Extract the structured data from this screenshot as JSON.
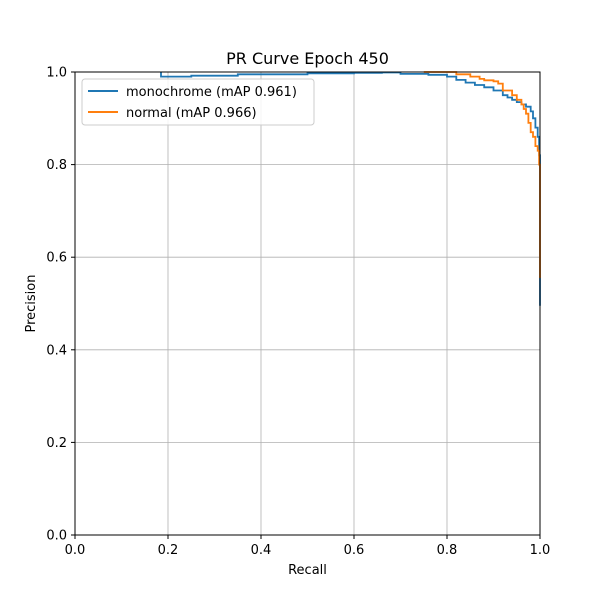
{
  "chart_data": {
    "type": "line",
    "title": "PR Curve Epoch 450",
    "xlabel": "Recall",
    "ylabel": "Precision",
    "xlim": [
      0,
      1
    ],
    "ylim": [
      0,
      1
    ],
    "xticks": [
      "0.0",
      "0.2",
      "0.4",
      "0.6",
      "0.8",
      "1.0"
    ],
    "yticks": [
      "0.0",
      "0.2",
      "0.4",
      "0.6",
      "0.8",
      "1.0"
    ],
    "grid": true,
    "legend_position": "top-left",
    "series": [
      {
        "name": "monochrome (mAP 0.961)",
        "color": "#1f77b4",
        "x": [
          0.185,
          0.185,
          0.25,
          0.35,
          0.5,
          0.6,
          0.66,
          0.7,
          0.76,
          0.8,
          0.82,
          0.84,
          0.86,
          0.88,
          0.9,
          0.92,
          0.93,
          0.94,
          0.95,
          0.96,
          0.97,
          0.98,
          0.985,
          0.99,
          0.995,
          0.998,
          1.0,
          1.0,
          1.0
        ],
        "y": [
          1.0,
          0.99,
          0.992,
          0.995,
          0.997,
          0.998,
          0.999,
          0.996,
          0.994,
          0.99,
          0.983,
          0.977,
          0.972,
          0.967,
          0.96,
          0.95,
          0.945,
          0.94,
          0.935,
          0.93,
          0.925,
          0.915,
          0.9,
          0.88,
          0.86,
          0.82,
          0.75,
          0.6,
          0.495
        ]
      },
      {
        "name": "normal (mAP 0.966)",
        "color": "#ff7f0e",
        "x": [
          0.75,
          0.8,
          0.82,
          0.85,
          0.87,
          0.88,
          0.9,
          0.91,
          0.92,
          0.94,
          0.95,
          0.96,
          0.965,
          0.97,
          0.975,
          0.98,
          0.985,
          0.99,
          0.995,
          0.998,
          1.0,
          1.0
        ],
        "y": [
          1.0,
          1.0,
          0.995,
          0.99,
          0.985,
          0.982,
          0.98,
          0.975,
          0.96,
          0.95,
          0.94,
          0.93,
          0.92,
          0.91,
          0.89,
          0.87,
          0.86,
          0.84,
          0.83,
          0.8,
          0.7,
          0.555
        ]
      }
    ]
  }
}
